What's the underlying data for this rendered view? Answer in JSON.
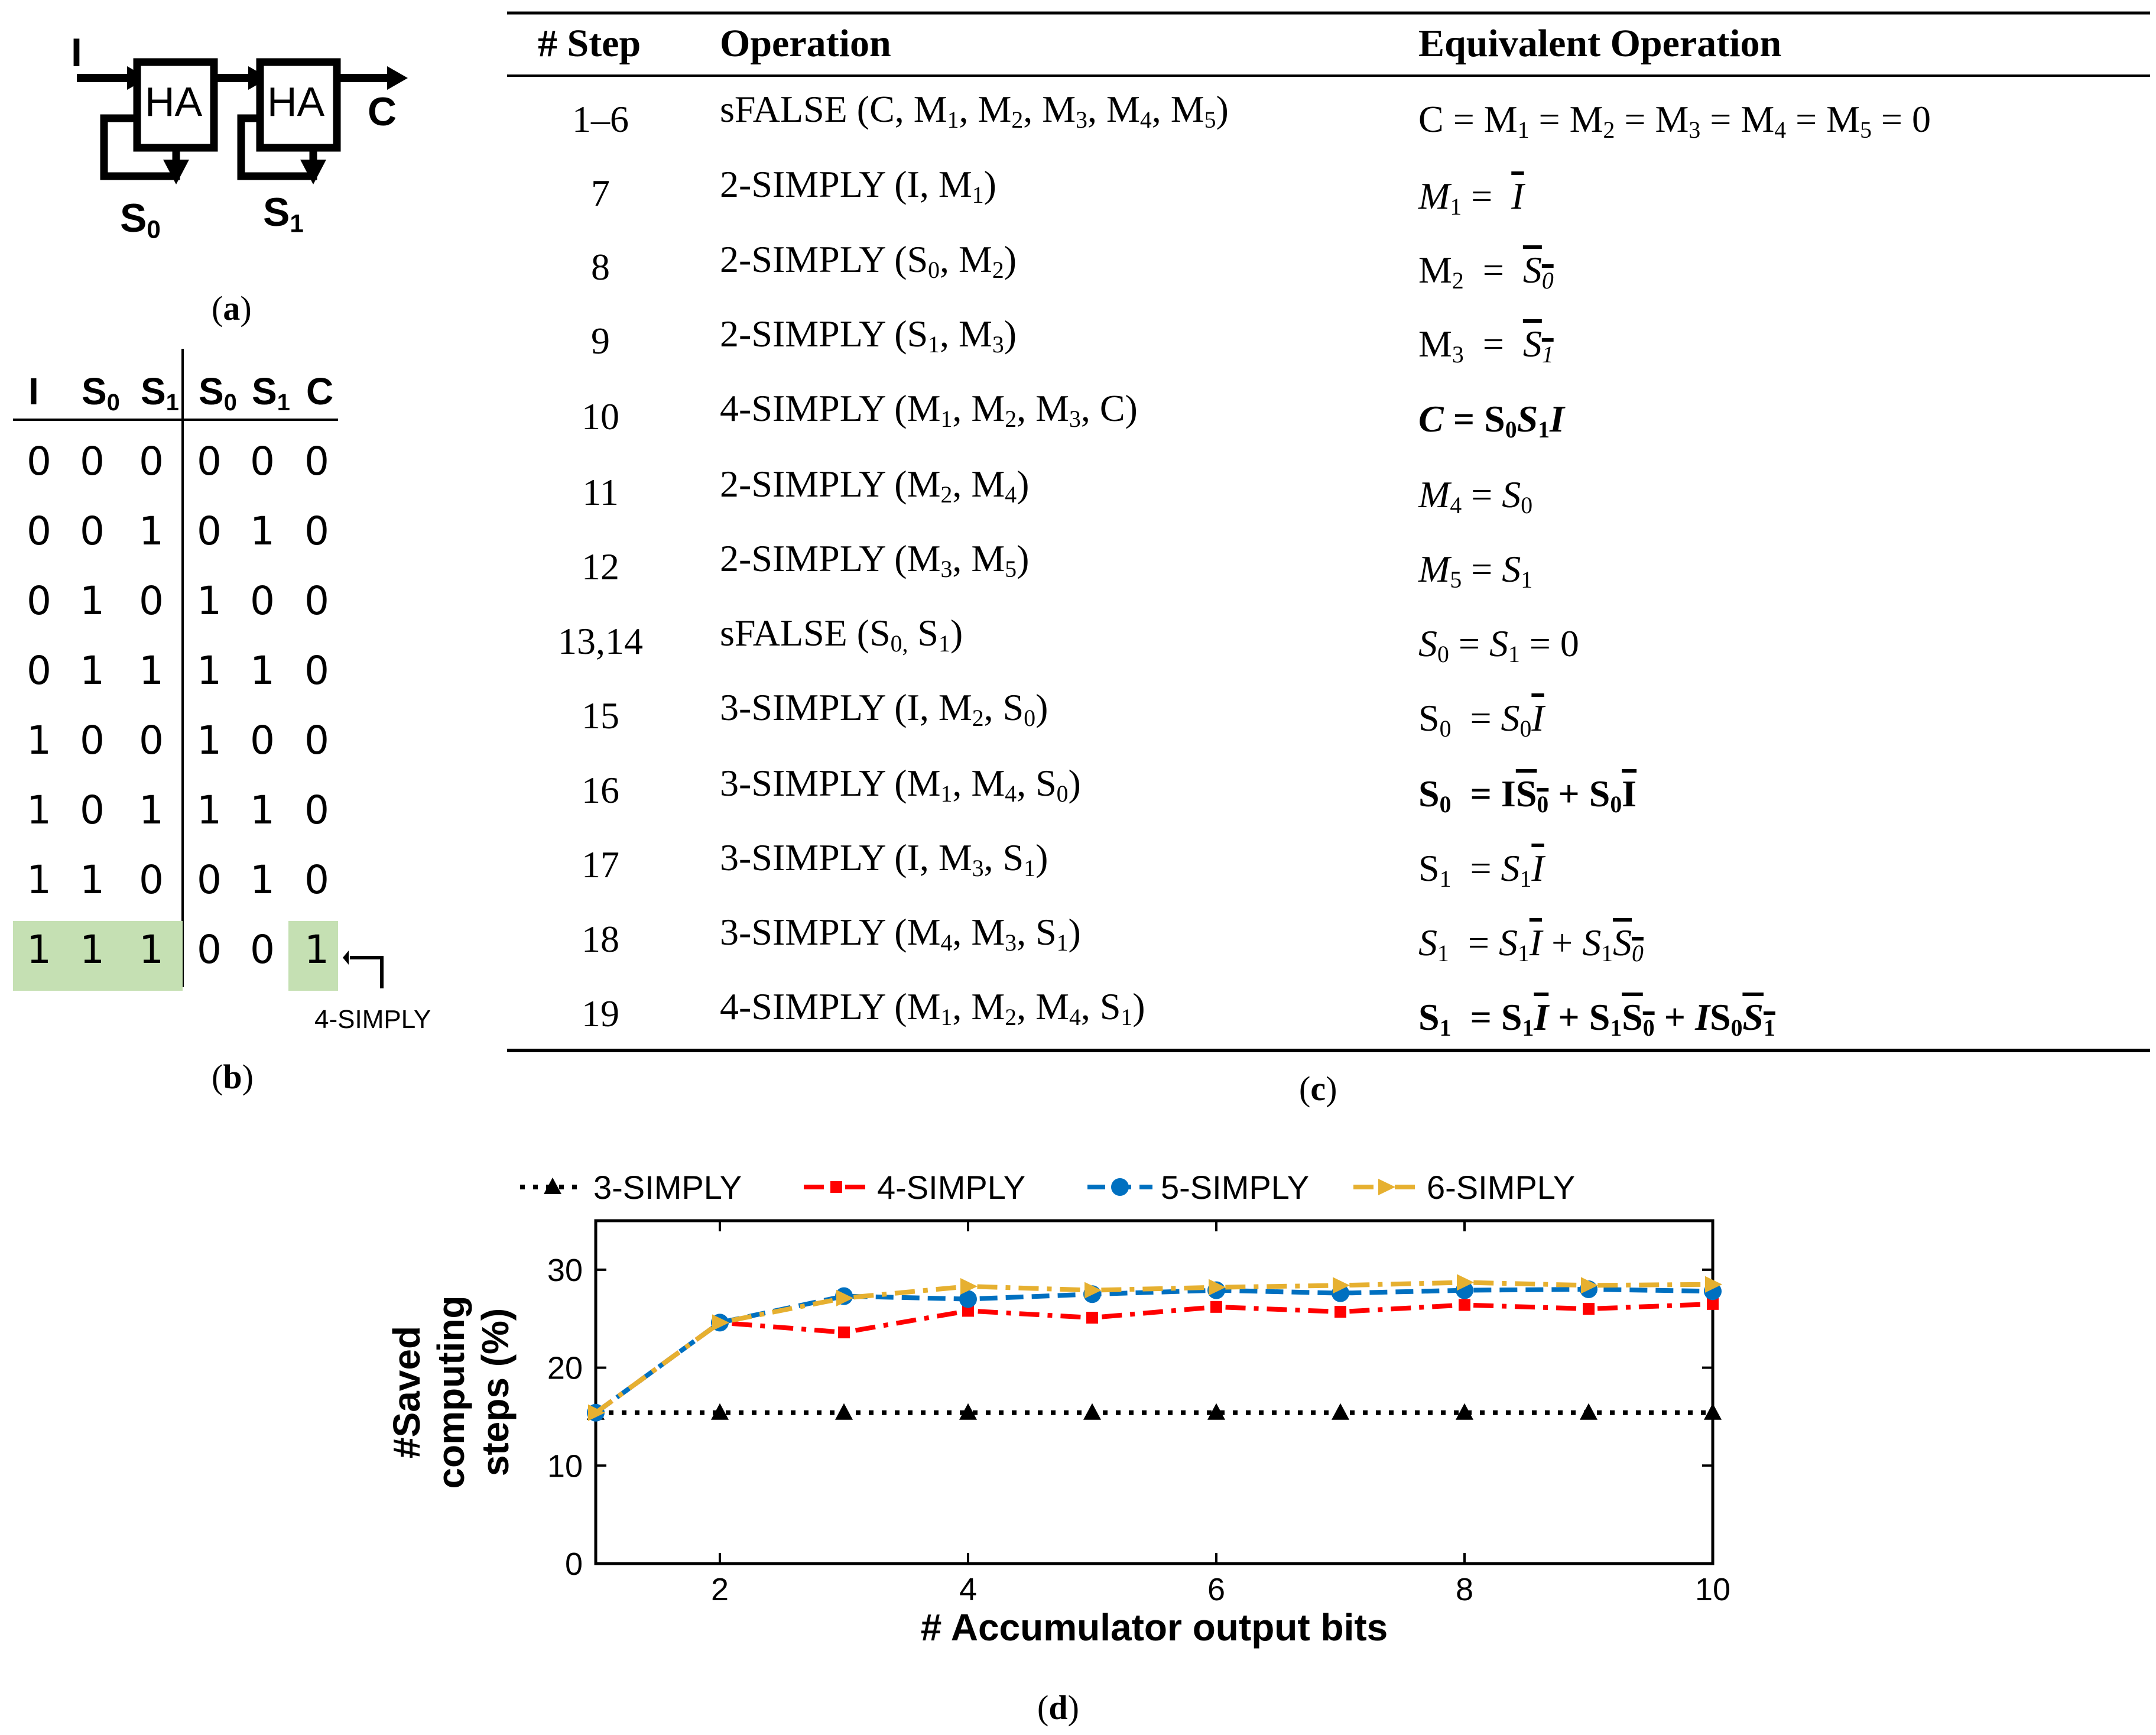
{
  "panels": {
    "a": "(a)",
    "b": "(b)",
    "c": "(c)",
    "d": "(d)"
  },
  "circuit": {
    "input_label": "I",
    "ha1_label": "HA",
    "ha2_label": "HA",
    "carry_label": "C",
    "s0_main": "S",
    "s0_sub": "0",
    "s1_main": "S",
    "s1_sub": "1"
  },
  "truth_table": {
    "headers": [
      {
        "main": "I",
        "sub": ""
      },
      {
        "main": "S",
        "sub": "0"
      },
      {
        "main": "S",
        "sub": "1"
      },
      {
        "main": "S",
        "sub": "0"
      },
      {
        "main": "S",
        "sub": "1"
      },
      {
        "main": "C",
        "sub": ""
      }
    ],
    "rows": [
      [
        "0",
        "0",
        "0",
        "0",
        "0",
        "0"
      ],
      [
        "0",
        "0",
        "1",
        "0",
        "1",
        "0"
      ],
      [
        "0",
        "1",
        "0",
        "1",
        "0",
        "0"
      ],
      [
        "0",
        "1",
        "1",
        "1",
        "1",
        "0"
      ],
      [
        "1",
        "0",
        "0",
        "1",
        "0",
        "0"
      ],
      [
        "1",
        "0",
        "1",
        "1",
        "1",
        "0"
      ],
      [
        "1",
        "1",
        "0",
        "0",
        "1",
        "0"
      ],
      [
        "1",
        "1",
        "1",
        "0",
        "0",
        "1"
      ]
    ],
    "highlight_color": "#c5e0b3",
    "annotation": "4-SIMPLY"
  },
  "ops_table": {
    "headers": {
      "step": "# Step",
      "operation": "Operation",
      "equivalent": "Equivalent Operation"
    },
    "rows": [
      {
        "step": "1–6"
      },
      {
        "step": "7"
      },
      {
        "step": "8"
      },
      {
        "step": "9"
      },
      {
        "step": "10"
      },
      {
        "step": "11"
      },
      {
        "step": "12"
      },
      {
        "step": "13,14"
      },
      {
        "step": "15"
      },
      {
        "step": "16"
      },
      {
        "step": "17"
      },
      {
        "step": "18"
      },
      {
        "step": "19"
      }
    ],
    "op_names": [
      "sFALSE",
      "2-SIMPLY",
      "2-SIMPLY",
      "2-SIMPLY",
      "4-SIMPLY",
      "2-SIMPLY",
      "2-SIMPLY",
      "sFALSE",
      "3-SIMPLY",
      "3-SIMPLY",
      "3-SIMPLY",
      "3-SIMPLY",
      "4-SIMPLY"
    ]
  },
  "chart_data": {
    "type": "line",
    "title": "",
    "xlabel": "# Accumulator output bits",
    "ylabel_lines": [
      "#Saved",
      "computing",
      "steps (%)"
    ],
    "xlim": [
      1,
      10
    ],
    "ylim": [
      0,
      35
    ],
    "xticks": [
      "2",
      "4",
      "6",
      "8",
      "10"
    ],
    "yticks": [
      "0",
      "10",
      "20",
      "30"
    ],
    "x": [
      1,
      2,
      3,
      4,
      5,
      6,
      7,
      8,
      9,
      10
    ],
    "series": [
      {
        "name": "3-SIMPLY",
        "color": "#000000",
        "marker": "triangle",
        "dash": "dotted",
        "values": [
          15.4,
          15.4,
          15.4,
          15.4,
          15.4,
          15.4,
          15.4,
          15.4,
          15.4,
          15.4
        ]
      },
      {
        "name": "4-SIMPLY",
        "color": "#ff0000",
        "marker": "square",
        "dash": "dashdot",
        "values": [
          15.4,
          24.6,
          23.6,
          25.8,
          25.1,
          26.2,
          25.7,
          26.4,
          26.0,
          26.5
        ]
      },
      {
        "name": "5-SIMPLY",
        "color": "#0070c0",
        "marker": "circle",
        "dash": "dashed",
        "values": [
          15.4,
          24.6,
          27.3,
          27.0,
          27.5,
          27.9,
          27.6,
          27.9,
          28.0,
          27.8
        ]
      },
      {
        "name": "6-SIMPLY",
        "color": "#e6b030",
        "marker": "arrow",
        "dash": "dashdot",
        "values": [
          15.4,
          24.6,
          27.1,
          28.3,
          27.9,
          28.2,
          28.4,
          28.7,
          28.4,
          28.5
        ]
      }
    ]
  }
}
